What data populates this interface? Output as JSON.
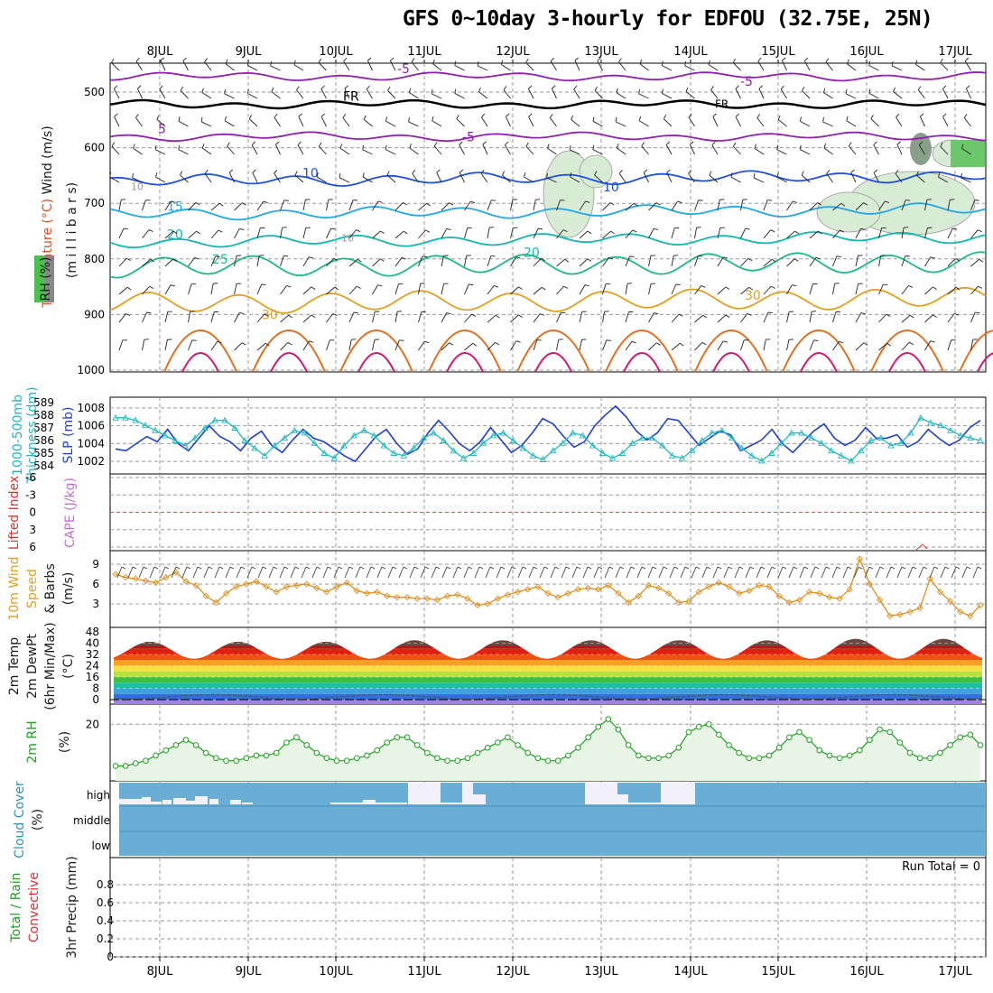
{
  "title": "GFS 0~10day 3-hourly for EDFOU (32.75E, 25N)",
  "chart_data": {
    "type": "meteogram",
    "dates": [
      "8JUL",
      "9JUL",
      "10JUL",
      "11JUL",
      "12JUL",
      "13JUL",
      "14JUL",
      "15JUL",
      "16JUL",
      "17JUL"
    ],
    "panels": [
      {
        "id": "upper_air",
        "ylabel_parts": [
          {
            "text": "Wind (m/s)",
            "color": "#1a1a1a"
          },
          {
            "text": "Temperature (°C)",
            "color": "#e05020"
          },
          {
            "text": "RH (%)",
            "color": "#1a1a1a"
          },
          {
            "text": "(m i l l i b a r s)",
            "color": "#1a1a1a"
          }
        ],
        "yticks": [
          500,
          600,
          700,
          800,
          900,
          1000
        ],
        "temp_contour_labels": [
          "-5",
          "FR",
          "5",
          "10",
          "15",
          "20",
          "25",
          "30",
          "10"
        ],
        "isotherms": [
          {
            "label": "-5",
            "color": "#9020b0",
            "level_mb": 472
          },
          {
            "label": "FR",
            "color": "#000000",
            "level_mb": 522
          },
          {
            "label": "5",
            "color": "#9020b0",
            "level_mb": 580
          },
          {
            "label": "10",
            "color": "#2050e0",
            "level_mb": 660
          },
          {
            "label": "15",
            "color": "#20a8e8",
            "level_mb": 720
          },
          {
            "label": "20",
            "color": "#10b8b0",
            "level_mb": 770
          },
          {
            "label": "25",
            "color": "#20b888",
            "level_mb": 815
          },
          {
            "label": "30",
            "color": "#e0a020",
            "level_mb": 880
          }
        ]
      },
      {
        "id": "thickness_slp",
        "ylabel_left": "1000-500mb Thickness (dm)",
        "ylabel_right": "SLP (mb)",
        "yticks_left": [
          584,
          585,
          586,
          587,
          588,
          589
        ],
        "yticks_right": [
          1002,
          1004,
          1006,
          1008
        ],
        "slp_series": [
          1003.4,
          1003.2,
          1004.0,
          1004.8,
          1004.2,
          1005.6,
          1004.0,
          1003.2,
          1004.6,
          1006.0,
          1004.8,
          1004.2,
          1003.2,
          1004.6,
          1005.4,
          1003.8,
          1003.0,
          1004.4,
          1005.6,
          1004.6,
          1004.2,
          1003.4,
          1002.6,
          1002.0,
          1003.4,
          1004.8,
          1005.6,
          1004.0,
          1002.8,
          1003.4,
          1005.2,
          1006.6,
          1005.4,
          1004.0,
          1003.2,
          1004.2,
          1005.8,
          1004.4,
          1003.0,
          1003.8,
          1005.2,
          1006.8,
          1006.2,
          1004.8,
          1003.6,
          1004.2,
          1006.0,
          1007.2,
          1008.2,
          1007.0,
          1005.4,
          1004.4,
          1005.2,
          1006.8,
          1006.6,
          1005.2,
          1003.8,
          1004.6,
          1005.4,
          1005.0,
          1003.2,
          1003.8,
          1004.4,
          1005.6,
          1004.0,
          1003.0,
          1004.2,
          1005.4,
          1006.2,
          1004.6,
          1003.8,
          1004.4,
          1005.8,
          1004.6,
          1004.6,
          1005.0,
          1003.6,
          1004.2,
          1005.6,
          1004.6,
          1003.8,
          1004.4,
          1005.8,
          1006.6
        ],
        "thickness_series": [
          587.8,
          587.8,
          587.6,
          587.2,
          586.8,
          586.4,
          586.0,
          585.6,
          586.2,
          587.0,
          587.6,
          587.6,
          587.0,
          586.0,
          585.4,
          584.8,
          585.6,
          586.2,
          586.8,
          586.6,
          585.8,
          585.0,
          584.6,
          585.6,
          586.4,
          586.8,
          586.4,
          585.6,
          585.0,
          584.8,
          585.4,
          586.2,
          586.6,
          586.0,
          585.2,
          584.6,
          585.0,
          585.8,
          586.4,
          586.6,
          586.0,
          585.4,
          584.8,
          584.5,
          585.2,
          585.8,
          586.6,
          586.4,
          585.6,
          585.0,
          584.6,
          585.0,
          585.8,
          586.2,
          586.2,
          585.6,
          584.8,
          584.6,
          585.2,
          586.0,
          586.6,
          586.8,
          586.2,
          585.4,
          584.8,
          584.4,
          585.0,
          585.8,
          586.6,
          586.6,
          586.2,
          585.8,
          585.2,
          584.8,
          584.4,
          585.2,
          586.0,
          586.2,
          585.6,
          585.8,
          586.6,
          587.8,
          587.4,
          587.2,
          586.8,
          586.4,
          586.2,
          586.0
        ]
      },
      {
        "id": "stability",
        "ylabel_parts": [
          {
            "text": "Lifted Index",
            "color": "#e03030"
          },
          {
            "text": "CAPE (J/kg)",
            "color": "#c070d0"
          }
        ],
        "yticks": [
          "-6",
          "-3",
          "0",
          "3",
          "6"
        ],
        "lifted_index_zero_line": 0
      },
      {
        "id": "wind10m",
        "ylabel_parts": [
          {
            "text": "10m Wind",
            "color": "#e0a020"
          },
          {
            "text": "Speed",
            "color": "#e0a020"
          },
          {
            "text": "& Barbs",
            "color": "#1a1a1a"
          },
          {
            "text": "(m/s)",
            "color": "#1a1a1a"
          }
        ],
        "yticks": [
          3,
          6,
          9
        ],
        "speed_series": [
          7.5,
          7.0,
          6.8,
          6.5,
          6.2,
          7.0,
          7.8,
          6.4,
          5.8,
          4.2,
          3.2,
          4.6,
          5.6,
          6.0,
          6.4,
          5.6,
          4.8,
          5.6,
          5.8,
          6.0,
          5.4,
          4.8,
          5.6,
          6.2,
          5.0,
          4.6,
          4.8,
          4.2,
          4.0,
          4.0,
          3.8,
          3.8,
          3.6,
          4.2,
          4.4,
          3.8,
          2.8,
          3.0,
          3.8,
          4.4,
          4.8,
          5.2,
          5.6,
          4.6,
          4.0,
          4.6,
          5.2,
          5.4,
          5.2,
          5.8,
          4.6,
          3.2,
          4.2,
          5.8,
          5.4,
          4.6,
          3.2,
          3.4,
          4.8,
          5.6,
          6.2,
          5.6,
          4.6,
          5.0,
          5.8,
          5.6,
          4.2,
          3.2,
          3.6,
          4.8,
          4.6,
          4.0,
          3.8,
          5.2,
          9.8,
          6.0,
          3.6,
          1.2,
          1.4,
          1.8,
          2.4,
          6.8,
          4.8,
          3.4,
          1.8,
          1.2,
          2.8
        ]
      },
      {
        "id": "temp2m",
        "ylabel_parts": [
          {
            "text": "2m Temp",
            "color": "#1a1a1a"
          },
          {
            "text": "2m DewPt",
            "color": "#1a1a1a"
          },
          {
            "text": "(6hr Min/Max)",
            "color": "#1a1a1a"
          },
          {
            "text": "(°C)",
            "color": "#1a1a1a"
          }
        ],
        "yticks": [
          0,
          8,
          16,
          24,
          32,
          40,
          48
        ],
        "daily_temp_min": [
          29,
          29,
          29,
          29,
          29,
          29,
          29,
          29,
          29,
          29
        ],
        "daily_temp_max": [
          41,
          41,
          41,
          42,
          42,
          42,
          42,
          42,
          43,
          43
        ],
        "dewpoint_approx": 2
      },
      {
        "id": "rh2m",
        "ylabel_parts": [
          {
            "text": "2m RH",
            "color": "#20a020"
          },
          {
            "text": "(%)",
            "color": "#1a1a1a"
          }
        ],
        "yticks": [
          20
        ],
        "series": [
          4,
          4,
          5,
          6,
          8,
          10,
          12,
          14,
          12,
          9,
          7,
          6,
          6,
          7,
          8,
          8,
          9,
          13,
          15,
          12,
          9,
          7,
          6,
          6,
          7,
          8,
          10,
          13,
          15,
          15,
          12,
          9,
          7,
          6,
          6,
          7,
          9,
          11,
          13,
          15,
          12,
          9,
          7,
          6,
          6,
          8,
          11,
          15,
          19,
          22,
          18,
          12,
          8,
          7,
          7,
          8,
          11,
          17,
          19,
          20,
          16,
          12,
          9,
          7,
          7,
          8,
          11,
          15,
          17,
          14,
          10,
          8,
          7,
          8,
          10,
          14,
          18,
          17,
          13,
          9,
          7,
          7,
          9,
          12,
          15,
          16,
          12
        ]
      },
      {
        "id": "cloud",
        "ylabel_parts": [
          {
            "text": "Cloud Cover",
            "color": "#3090c0"
          },
          {
            "text": "(%)",
            "color": "#1a1a1a"
          }
        ],
        "yticks": [
          "high",
          "middle",
          "low"
        ]
      },
      {
        "id": "precip",
        "ylabel_parts": [
          {
            "text": "Total / Rain",
            "color": "#20a020"
          },
          {
            "text": "Convective",
            "color": "#e03030"
          },
          {
            "text": "3hr Precip (mm)",
            "color": "#1a1a1a"
          }
        ],
        "yticks": [
          "0",
          "0.2",
          "0.4",
          "0.6",
          "0.8"
        ],
        "run_total_label": "Run Total = 0",
        "values": [
          0
        ]
      }
    ]
  }
}
